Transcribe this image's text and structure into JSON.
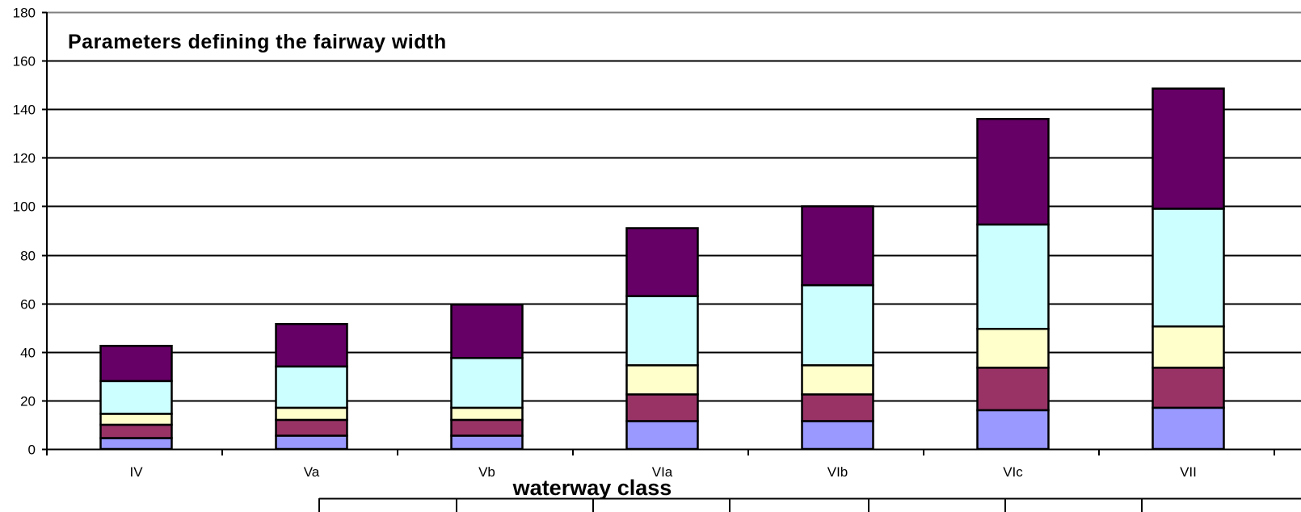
{
  "chart_data": {
    "type": "bar",
    "stacked": true,
    "title": "Parameters defining the fairway width",
    "xlabel": "waterway class",
    "ylabel": "",
    "ylim": [
      0,
      180
    ],
    "yticks": [
      "0",
      "20",
      "40",
      "60",
      "80",
      "100",
      "120",
      "140",
      "160",
      "180"
    ],
    "grid": true,
    "categories": [
      "IV",
      "Va",
      "Vb",
      "VIa",
      "VIb",
      "VIc",
      "VII"
    ],
    "series": [
      {
        "color": "#9999ff",
        "values": [
          4.5,
          5.5,
          5.5,
          11.5,
          11.5,
          16,
          17
        ]
      },
      {
        "color": "#993366",
        "values": [
          5.5,
          6.5,
          6.5,
          11,
          11,
          17.5,
          16.5
        ]
      },
      {
        "color": "#ffffcc",
        "values": [
          4.5,
          5,
          5,
          12,
          12,
          16,
          17
        ]
      },
      {
        "color": "#ccffff",
        "values": [
          13.5,
          17,
          20.5,
          28.5,
          33,
          43,
          48.5
        ]
      },
      {
        "color": "#660066",
        "values": [
          14.5,
          17.5,
          22,
          28,
          32.5,
          43.5,
          49.5
        ]
      }
    ]
  }
}
